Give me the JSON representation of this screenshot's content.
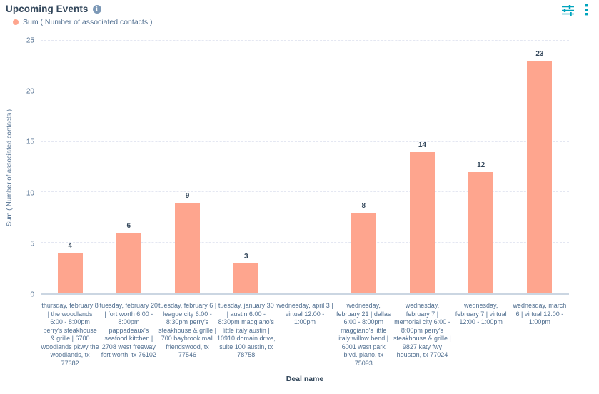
{
  "header": {
    "title": "Upcoming Events",
    "info_icon": "info-icon",
    "actions": [
      {
        "icon": "filter-sliders-icon"
      },
      {
        "icon": "kebab-menu-icon"
      }
    ]
  },
  "legend": {
    "label": "Sum ( Number of associated contacts )"
  },
  "colors": {
    "bar": "#fea58e",
    "accent_teal": "#00a4bd",
    "heading_text": "#33475b",
    "axis_text": "#516f90",
    "gridline": "#e4e7f2",
    "baseline": "#cbd6e2",
    "info_icon_bg": "#7c98b6"
  },
  "chart_data": {
    "type": "bar",
    "title": "Upcoming Events",
    "xlabel": "Deal name",
    "ylabel": "Sum ( Number of associated contacts )",
    "series_name": "Sum ( Number of associated contacts )",
    "ylim": [
      0,
      25
    ],
    "yticks": [
      0,
      5,
      10,
      15,
      20,
      25
    ],
    "grid": "horizontal-dashed",
    "legend_position": "top-left",
    "categories": [
      "thursday, february 8 | the woodlands 6:00 - 8:00pm perry's steakhouse & grille | 6700 woodlands pkwy the woodlands, tx 77382",
      "tuesday, february 20 | fort worth 6:00 - 8:00pm pappadeaux's seafood kitchen | 2708 west freeway fort worth, tx 76102",
      "tuesday, february 6 | league city 6:00 - 8:30pm perry's steakhouse & grille | 700 baybrook mall friendswood, tx 77546",
      "tuesday, january 30 | austin 6:00 - 8:30pm maggiano's little italy austin | 10910 domain drive, suite 100 austin, tx 78758",
      "wednesday, april 3 | virtual 12:00 - 1:00pm",
      "wednesday, february 21 | dallas 6:00 - 8:00pm maggiano's little italy willow bend | 6001 west park blvd. plano, tx 75093",
      "wednesday, february 7 | memorial city 6:00 - 8:00pm perry's steakhouse & grille | 9827 katy fwy houston, tx 77024",
      "wednesday, february 7 | virtual 12:00 - 1:00pm",
      "wednesday, march 6 | virtual 12:00 - 1:00pm"
    ],
    "values": [
      4,
      6,
      9,
      3,
      null,
      8,
      14,
      12,
      23
    ]
  }
}
